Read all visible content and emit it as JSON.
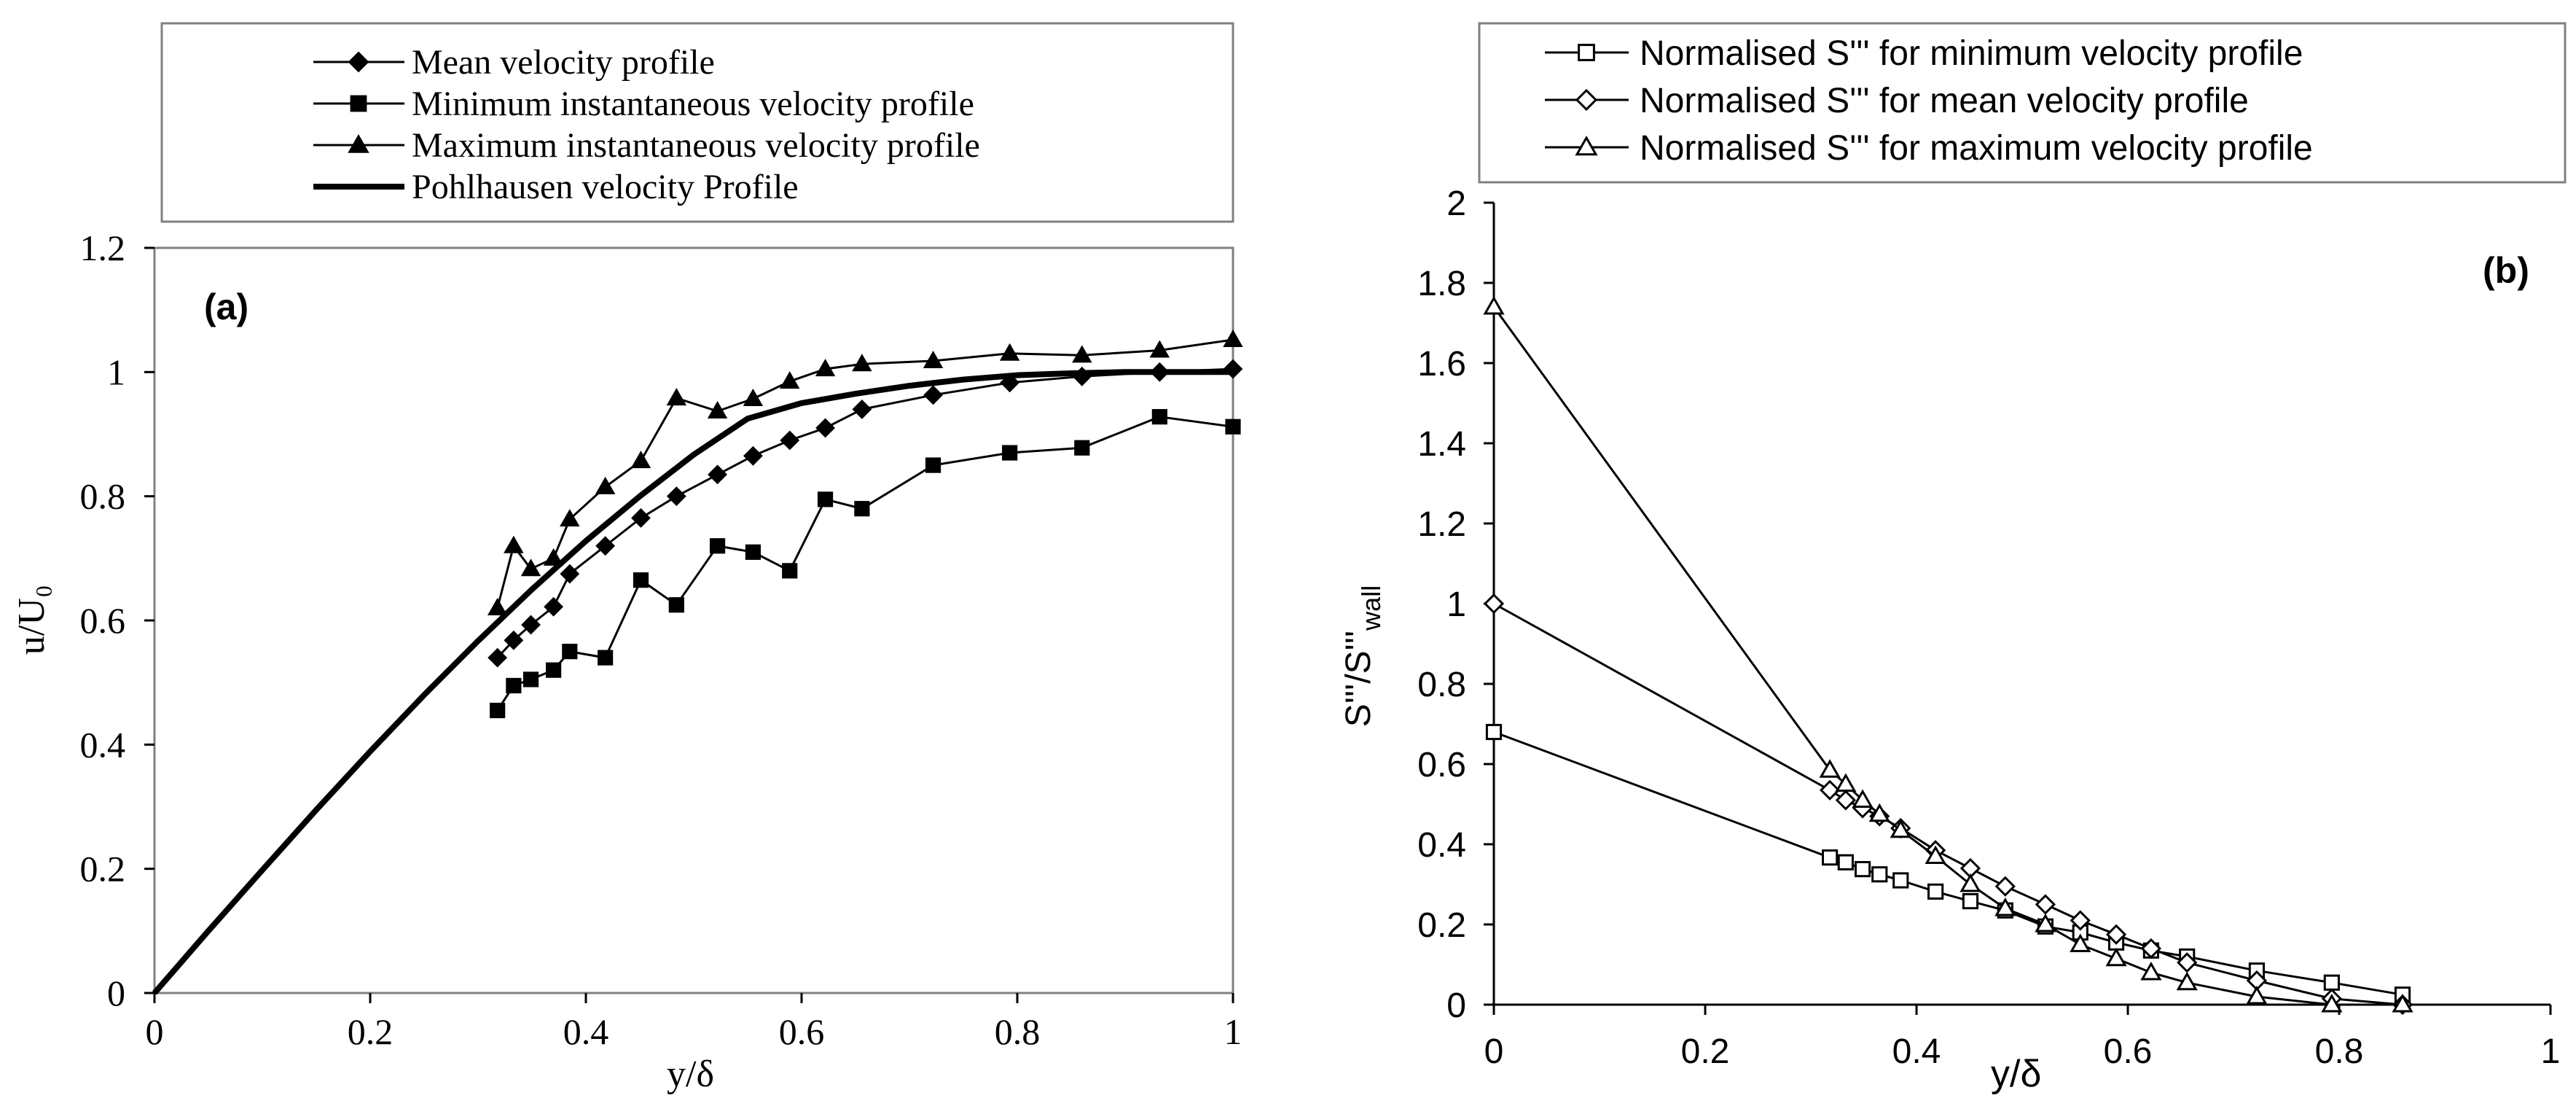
{
  "chart_data": [
    {
      "type": "line",
      "panel_label": "(a)",
      "xlabel": "y/δ",
      "ylabel": "u/U₀",
      "xlim": [
        0,
        1
      ],
      "ylim": [
        0,
        1.2
      ],
      "x_ticks": [
        0,
        0.2,
        0.4,
        0.6,
        0.8,
        1
      ],
      "x_tick_labels": [
        "0",
        "0.2",
        "0.4",
        "0.6",
        "0.8",
        "1"
      ],
      "y_ticks": [
        0,
        0.2,
        0.4,
        0.6,
        0.8,
        1,
        1.2
      ],
      "y_tick_labels": [
        "0",
        "0.2",
        "0.4",
        "0.6",
        "0.8",
        "1",
        "1.2"
      ],
      "grid": false,
      "legend_position": "top",
      "series": [
        {
          "name": "Mean velocity profile",
          "marker": "diamond-filled",
          "x": [
            0.318,
            0.333,
            0.349,
            0.37,
            0.385,
            0.418,
            0.451,
            0.484,
            0.522,
            0.555,
            0.589,
            0.622,
            0.656,
            0.722,
            0.793,
            0.86,
            0.932,
            1.0
          ],
          "y": [
            0.54,
            0.568,
            0.593,
            0.622,
            0.675,
            0.72,
            0.765,
            0.8,
            0.835,
            0.865,
            0.89,
            0.91,
            0.94,
            0.963,
            0.983,
            0.993,
            1.0,
            1.005
          ]
        },
        {
          "name": "Minimum instantaneous velocity profile",
          "marker": "square-filled",
          "x": [
            0.318,
            0.333,
            0.349,
            0.37,
            0.385,
            0.418,
            0.451,
            0.484,
            0.522,
            0.555,
            0.589,
            0.622,
            0.656,
            0.722,
            0.793,
            0.86,
            0.932,
            1.0
          ],
          "y": [
            0.455,
            0.495,
            0.505,
            0.52,
            0.55,
            0.54,
            0.665,
            0.625,
            0.72,
            0.71,
            0.68,
            0.795,
            0.78,
            0.85,
            0.87,
            0.878,
            0.928,
            0.912
          ]
        },
        {
          "name": "Maximum instantaneous velocity profile",
          "marker": "triangle-filled",
          "x": [
            0.318,
            0.333,
            0.349,
            0.37,
            0.385,
            0.418,
            0.451,
            0.484,
            0.522,
            0.555,
            0.589,
            0.622,
            0.656,
            0.722,
            0.793,
            0.86,
            0.932,
            1.0
          ],
          "y": [
            0.62,
            0.72,
            0.683,
            0.7,
            0.763,
            0.815,
            0.857,
            0.958,
            0.937,
            0.957,
            0.985,
            1.005,
            1.013,
            1.018,
            1.03,
            1.027,
            1.035,
            1.052
          ]
        },
        {
          "name": "Pohlhausen velocity Profile",
          "marker": "none",
          "x": [
            0,
            0.05,
            0.1,
            0.15,
            0.2,
            0.25,
            0.3,
            0.35,
            0.4,
            0.45,
            0.5,
            0.55,
            0.6,
            0.65,
            0.7,
            0.75,
            0.8,
            0.85,
            0.9,
            0.95,
            1.0
          ],
          "y": [
            0,
            0.1,
            0.198,
            0.295,
            0.389,
            0.48,
            0.567,
            0.65,
            0.728,
            0.8,
            0.867,
            0.925,
            0.95,
            0.965,
            0.978,
            0.988,
            0.995,
            0.998,
            1.0,
            1.0,
            1.0
          ]
        }
      ]
    },
    {
      "type": "line",
      "panel_label": "(b)",
      "xlabel": "y/δ",
      "ylabel": "S'''/S'''",
      "ylabel_subscript": "wall",
      "xlim": [
        0,
        1
      ],
      "ylim": [
        0,
        2
      ],
      "x_ticks": [
        0,
        0.2,
        0.4,
        0.6,
        0.8,
        1
      ],
      "x_tick_labels": [
        "0",
        "0.2",
        "0.4",
        "0.6",
        "0.8",
        "1"
      ],
      "y_ticks": [
        0,
        0.2,
        0.4,
        0.6,
        0.8,
        1,
        1.2,
        1.4,
        1.6,
        1.8,
        2
      ],
      "y_tick_labels": [
        "0",
        "0.2",
        "0.4",
        "0.6",
        "0.8",
        "1",
        "1.2",
        "1.4",
        "1.6",
        "1.8",
        "2"
      ],
      "grid": false,
      "legend_position": "top",
      "series": [
        {
          "name": "Normalised S''' for minimum velocity profile",
          "marker": "square-open",
          "x": [
            0,
            0.318,
            0.333,
            0.349,
            0.365,
            0.385,
            0.418,
            0.451,
            0.484,
            0.522,
            0.555,
            0.589,
            0.622,
            0.656,
            0.722,
            0.793,
            0.86
          ],
          "y": [
            0.68,
            0.367,
            0.355,
            0.338,
            0.325,
            0.31,
            0.282,
            0.258,
            0.235,
            0.195,
            0.18,
            0.155,
            0.135,
            0.12,
            0.085,
            0.055,
            0.025
          ]
        },
        {
          "name": "Normalised S''' for mean velocity profile",
          "marker": "diamond-open",
          "x": [
            0,
            0.318,
            0.333,
            0.349,
            0.365,
            0.385,
            0.418,
            0.451,
            0.484,
            0.522,
            0.555,
            0.589,
            0.622,
            0.656,
            0.722,
            0.793,
            0.86
          ],
          "y": [
            1.0,
            0.535,
            0.51,
            0.49,
            0.47,
            0.44,
            0.385,
            0.34,
            0.295,
            0.25,
            0.21,
            0.175,
            0.14,
            0.105,
            0.06,
            0.015,
            0.0
          ]
        },
        {
          "name": "Normalised S''' for maximum velocity profile",
          "marker": "triangle-open",
          "x": [
            0,
            0.318,
            0.333,
            0.349,
            0.365,
            0.385,
            0.418,
            0.451,
            0.484,
            0.522,
            0.555,
            0.589,
            0.622,
            0.656,
            0.722,
            0.793,
            0.86
          ],
          "y": [
            1.74,
            0.585,
            0.55,
            0.51,
            0.475,
            0.435,
            0.37,
            0.3,
            0.24,
            0.2,
            0.15,
            0.115,
            0.08,
            0.055,
            0.02,
            0.0,
            0.0
          ]
        }
      ]
    }
  ]
}
